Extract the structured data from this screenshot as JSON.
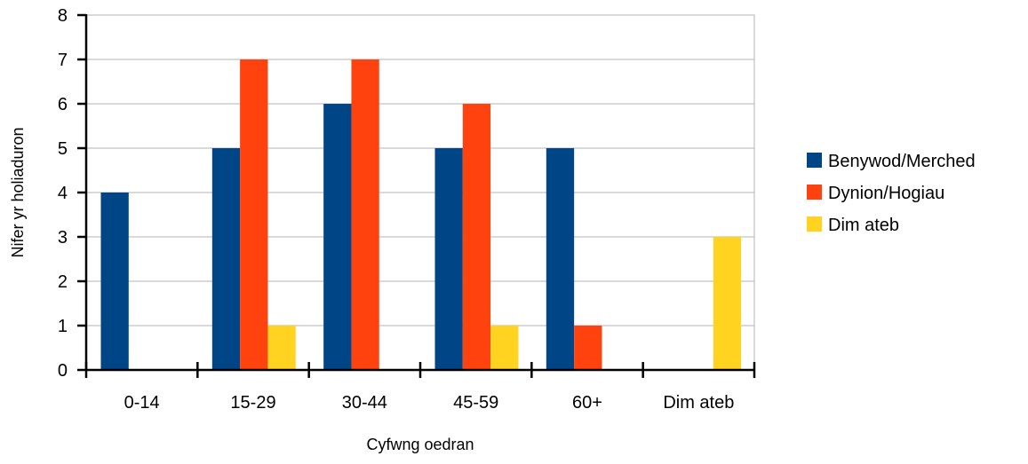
{
  "chart_data": {
    "type": "bar",
    "title": "",
    "xlabel": "Cyfwng oedran",
    "ylabel": "Nifer yr holiaduron",
    "categories": [
      "0-14",
      "15-29",
      "30-44",
      "45-59",
      "60+",
      "Dim ateb"
    ],
    "series": [
      {
        "name": "Benywod/Merched",
        "color": "#004586",
        "values": [
          4,
          5,
          6,
          5,
          5,
          0
        ]
      },
      {
        "name": "Dynion/Hogiau",
        "color": "#ff420e",
        "values": [
          0,
          7,
          7,
          6,
          1,
          0
        ]
      },
      {
        "name": "Dim ateb",
        "color": "#ffd320",
        "values": [
          0,
          1,
          0,
          1,
          0,
          3
        ]
      }
    ],
    "ylim": [
      0,
      8
    ],
    "yticks": [
      0,
      1,
      2,
      3,
      4,
      5,
      6,
      7,
      8
    ],
    "grid": true,
    "legend": "right"
  }
}
